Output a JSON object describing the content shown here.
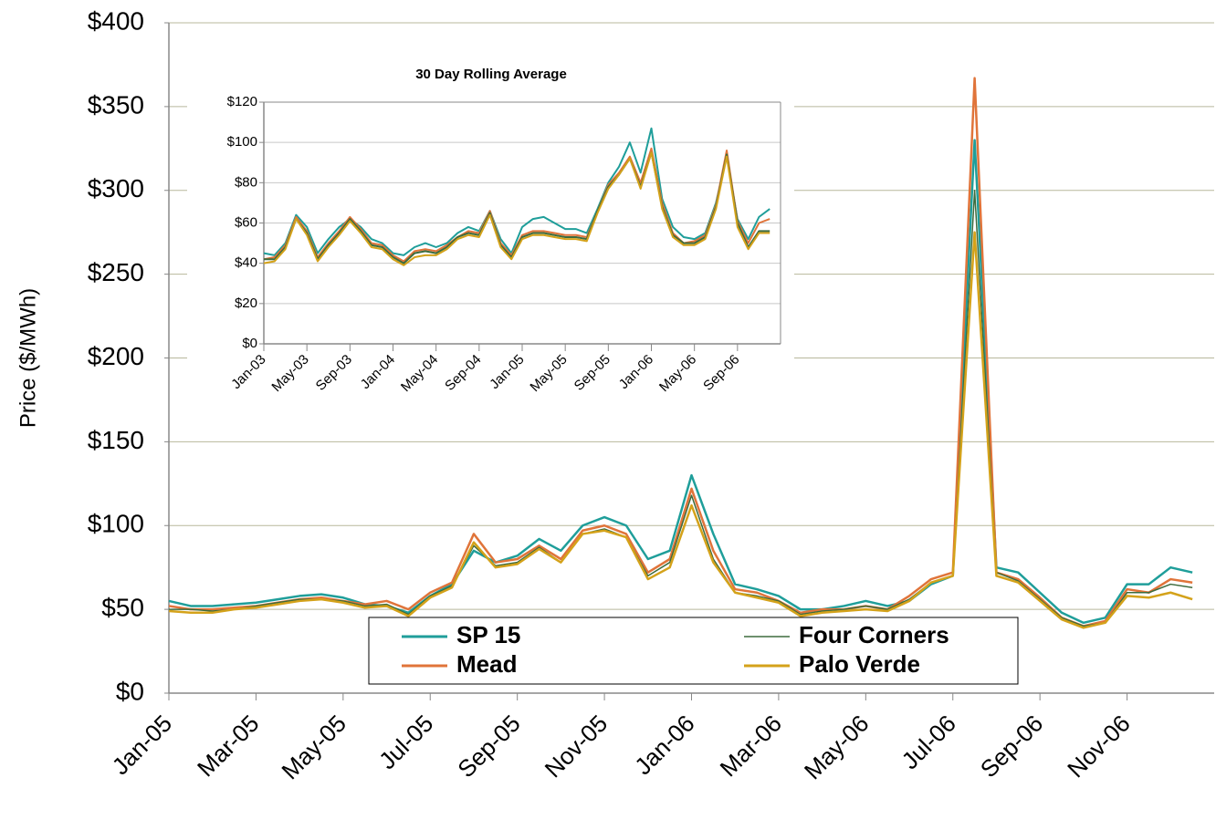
{
  "chart_data": [
    {
      "type": "line",
      "y_label": "Price ($/MWh)",
      "categories": [
        "Jan-05",
        null,
        null,
        null,
        "Mar-05",
        null,
        null,
        null,
        "May-05",
        null,
        null,
        null,
        "Jul-05",
        null,
        null,
        null,
        "Sep-05",
        null,
        null,
        null,
        "Nov-05",
        null,
        null,
        null,
        "Jan-06",
        null,
        null,
        null,
        "Mar-06",
        null,
        null,
        null,
        "May-06",
        null,
        null,
        null,
        "Jul-06",
        null,
        null,
        null,
        "Sep-06",
        null,
        null,
        null,
        "Nov-06",
        null,
        null,
        null
      ],
      "series": [
        {
          "name": "SP 15",
          "color": "#1f9e9a",
          "values": [
            55,
            52,
            52,
            53,
            54,
            56,
            58,
            59,
            57,
            53,
            52,
            48,
            58,
            65,
            85,
            78,
            82,
            92,
            85,
            100,
            105,
            100,
            80,
            85,
            130,
            95,
            65,
            62,
            58,
            50,
            50,
            52,
            55,
            52,
            55,
            65,
            70,
            330,
            75,
            72,
            60,
            48,
            42,
            45,
            65,
            65,
            75,
            72
          ]
        },
        {
          "name": "Mead",
          "color": "#e0743a",
          "values": [
            52,
            50,
            50,
            51,
            52,
            54,
            56,
            57,
            55,
            53,
            55,
            50,
            60,
            66,
            95,
            78,
            80,
            88,
            80,
            97,
            100,
            95,
            72,
            80,
            122,
            85,
            62,
            60,
            55,
            48,
            50,
            50,
            52,
            50,
            58,
            68,
            72,
            367,
            72,
            68,
            57,
            45,
            40,
            43,
            62,
            60,
            68,
            66
          ]
        },
        {
          "name": "Four Corners",
          "color": "#3d6b3d",
          "values": [
            50,
            50,
            49,
            50,
            52,
            54,
            56,
            56,
            55,
            52,
            53,
            47,
            58,
            64,
            88,
            76,
            78,
            87,
            78,
            95,
            98,
            93,
            70,
            78,
            118,
            80,
            60,
            58,
            55,
            47,
            49,
            50,
            52,
            50,
            56,
            66,
            70,
            300,
            72,
            67,
            56,
            45,
            40,
            42,
            60,
            60,
            65,
            63
          ]
        },
        {
          "name": "Palo Verde",
          "color": "#d4a21a",
          "values": [
            49,
            48,
            48,
            50,
            51,
            53,
            55,
            56,
            54,
            51,
            52,
            46,
            57,
            63,
            90,
            75,
            77,
            86,
            78,
            95,
            97,
            93,
            68,
            75,
            112,
            78,
            60,
            57,
            54,
            46,
            48,
            49,
            50,
            49,
            55,
            66,
            70,
            275,
            70,
            66,
            55,
            44,
            39,
            42,
            58,
            57,
            60,
            56
          ]
        }
      ],
      "ylim": [
        0,
        400
      ],
      "yticks": [
        {
          "value": 0,
          "label": "$0"
        },
        {
          "value": 50,
          "label": "$50"
        },
        {
          "value": 100,
          "label": "$100"
        },
        {
          "value": 150,
          "label": "$150"
        },
        {
          "value": 200,
          "label": "$200"
        },
        {
          "value": 250,
          "label": "$250"
        },
        {
          "value": 300,
          "label": "$300"
        },
        {
          "value": 350,
          "label": "$350"
        },
        {
          "value": 400,
          "label": "$400"
        }
      ],
      "grid": true,
      "legend": "bottom"
    },
    {
      "type": "line",
      "title": "30 Day Rolling Average",
      "categories": [
        "Jan-03",
        null,
        null,
        null,
        "May-03",
        null,
        null,
        null,
        "Sep-03",
        null,
        null,
        null,
        "Jan-04",
        null,
        null,
        null,
        "May-04",
        null,
        null,
        null,
        "Sep-04",
        null,
        null,
        null,
        "Jan-05",
        null,
        null,
        null,
        "May-05",
        null,
        null,
        null,
        "Sep-05",
        null,
        null,
        null,
        "Jan-06",
        null,
        null,
        null,
        "May-06",
        null,
        null,
        null,
        "Sep-06",
        null,
        null,
        null
      ],
      "series": [
        {
          "color": "#1f9e9a",
          "values": [
            45,
            44,
            50,
            64,
            58,
            45,
            52,
            58,
            62,
            58,
            52,
            50,
            45,
            44,
            48,
            50,
            48,
            50,
            55,
            58,
            56,
            66,
            52,
            45,
            58,
            62,
            63,
            60,
            57,
            57,
            55,
            67,
            80,
            88,
            100,
            85,
            107,
            72,
            58,
            53,
            52,
            55,
            70,
            93,
            62,
            52,
            63,
            67
          ]
        },
        {
          "color": "#e0743a",
          "values": [
            42,
            43,
            49,
            63,
            56,
            43,
            50,
            56,
            63,
            57,
            50,
            49,
            44,
            41,
            46,
            47,
            46,
            49,
            53,
            56,
            55,
            66,
            50,
            44,
            54,
            56,
            56,
            55,
            54,
            54,
            53,
            66,
            79,
            85,
            93,
            80,
            97,
            70,
            55,
            50,
            51,
            54,
            69,
            96,
            61,
            50,
            60,
            62
          ]
        },
        {
          "color": "#3d6b3d",
          "values": [
            42,
            42,
            48,
            62,
            55,
            42,
            49,
            55,
            62,
            56,
            49,
            48,
            43,
            40,
            45,
            46,
            45,
            48,
            53,
            55,
            54,
            65,
            49,
            43,
            53,
            55,
            55,
            54,
            53,
            53,
            52,
            66,
            78,
            84,
            92,
            78,
            95,
            68,
            54,
            50,
            50,
            53,
            68,
            94,
            60,
            48,
            56,
            56
          ]
        },
        {
          "color": "#d4a21a",
          "values": [
            40,
            41,
            47,
            62,
            54,
            41,
            48,
            54,
            61,
            55,
            48,
            47,
            42,
            39,
            43,
            44,
            44,
            47,
            52,
            54,
            53,
            64,
            48,
            42,
            52,
            54,
            54,
            53,
            52,
            52,
            51,
            65,
            77,
            84,
            92,
            77,
            95,
            67,
            53,
            49,
            49,
            52,
            67,
            93,
            58,
            47,
            55,
            55
          ]
        }
      ],
      "ylim": [
        0,
        120
      ],
      "yticks": [
        {
          "value": 0,
          "label": "$0"
        },
        {
          "value": 20,
          "label": "$20"
        },
        {
          "value": 40,
          "label": "$40"
        },
        {
          "value": 60,
          "label": "$60"
        },
        {
          "value": 80,
          "label": "$80"
        },
        {
          "value": 100,
          "label": "$100"
        },
        {
          "value": 120,
          "label": "$120"
        }
      ],
      "grid": true
    }
  ]
}
